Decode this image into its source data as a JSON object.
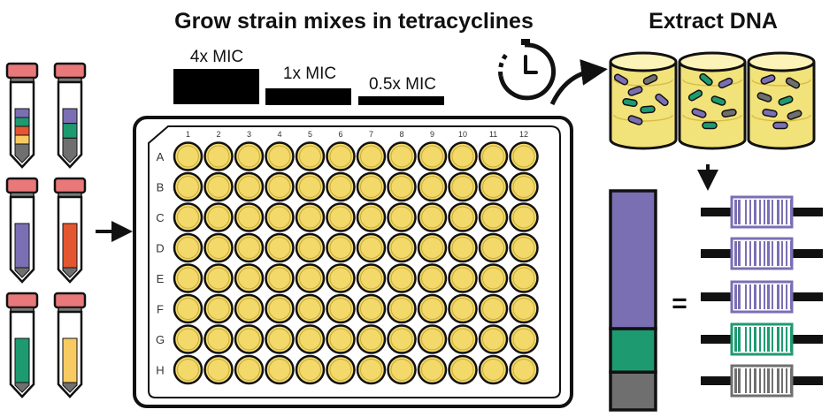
{
  "figure": {
    "title_left": "Grow strain mixes in tetracyclines",
    "title_right": "Extract DNA",
    "concentrations": [
      "4x MIC",
      "1x MIC",
      "0.5x MIC"
    ],
    "plate": {
      "columns": [
        "1",
        "2",
        "3",
        "4",
        "5",
        "6",
        "7",
        "8",
        "9",
        "10",
        "11",
        "12"
      ],
      "rows": [
        "A",
        "B",
        "C",
        "D",
        "E",
        "F",
        "G",
        "H"
      ]
    },
    "equals_sign": "=",
    "icons": [
      "stopwatch-icon",
      "curved-arrow-icon",
      "right-arrow-icon",
      "down-arrow-icon",
      "tube-icon",
      "beaker-icon",
      "barcode-icon"
    ],
    "colors": {
      "well": "#f2d96a",
      "liquid": "#f2e27a",
      "tube_cap": "#e8787a",
      "purple": "#7b6fb4",
      "green": "#1e9a71",
      "orange": "#e4562f",
      "yellow": "#f7cb61",
      "gray": "#6f6f6f"
    },
    "tube_mixes": [
      [
        "purple",
        "green",
        "orange",
        "yellow",
        "gray"
      ],
      [
        "purple",
        "green",
        "gray"
      ],
      [
        "purple"
      ],
      [
        "orange"
      ],
      [
        "green"
      ],
      [
        "yellow"
      ]
    ],
    "abundance_bar": [
      {
        "color": "purple",
        "fraction": 0.73
      },
      {
        "color": "green",
        "fraction": 0.23
      },
      {
        "color": "gray",
        "fraction": 0.2
      }
    ],
    "barcodes": [
      "purple",
      "purple",
      "purple",
      "green",
      "gray"
    ]
  }
}
